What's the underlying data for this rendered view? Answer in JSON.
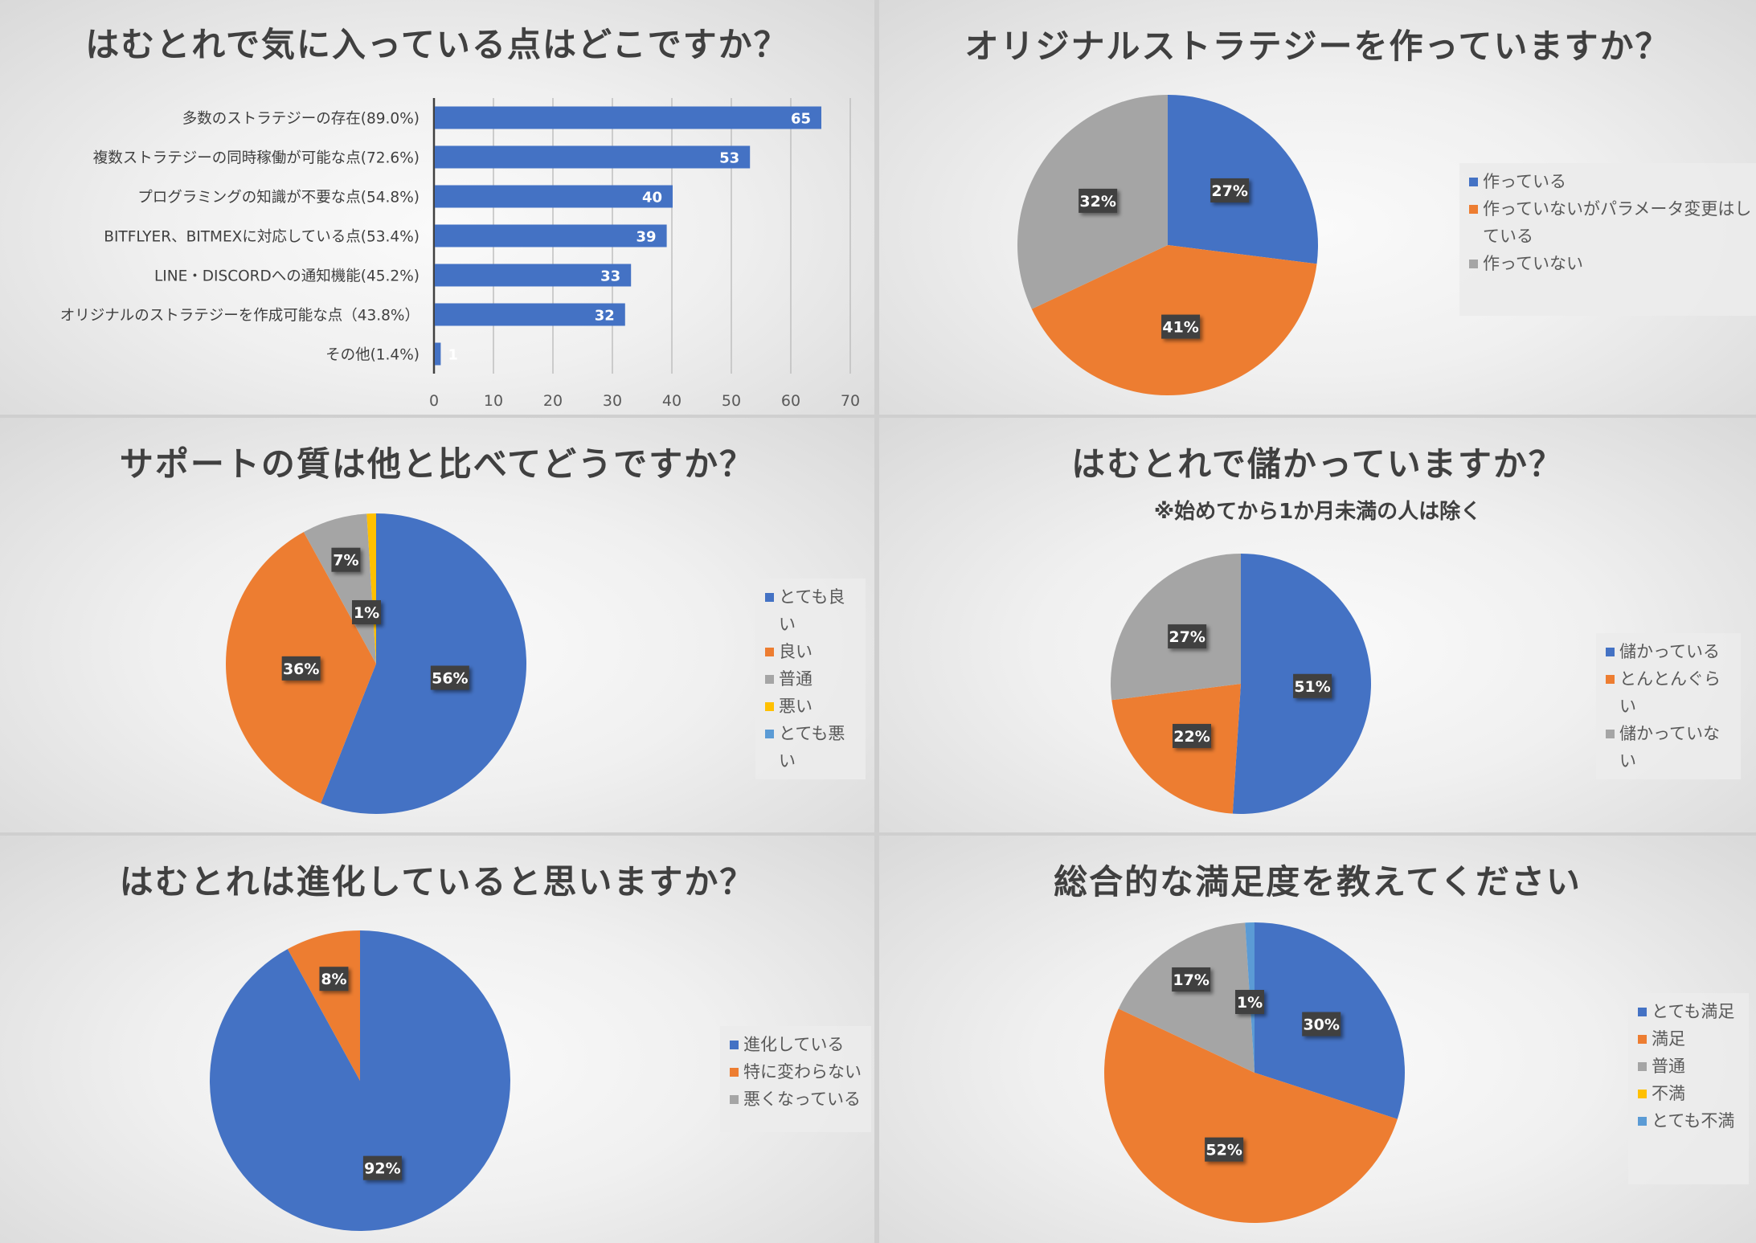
{
  "chart_data": [
    {
      "type": "bar",
      "orientation": "horizontal",
      "title": "はむとれで気に入っている点はどこですか？",
      "categories": [
        "多数のストラテジーの存在(89.0%)",
        "複数ストラテジーの同時稼働が可能な点(72.6%)",
        "プログラミングの知識が不要な点(54.8%)",
        "BITFLYER、BITMEXに対応している点(53.4%)",
        "LINE・DISCORDへの通知機能(45.2%)",
        "オリジナルのストラテジーを作成可能な点（43.8%）",
        "その他(1.4%)"
      ],
      "values": [
        65,
        53,
        40,
        39,
        33,
        32,
        1
      ],
      "data_labels": [
        "65",
        "53",
        "40",
        "39",
        "33",
        "32",
        "1"
      ],
      "xticks": [
        "0",
        "10",
        "20",
        "30",
        "40",
        "50",
        "60",
        "70"
      ],
      "xlim": [
        0,
        70
      ],
      "grid": true,
      "color": "#4472C4"
    },
    {
      "type": "pie",
      "title": "オリジナルストラテジーを作っていますか？",
      "labels": [
        "作っている",
        "作っていないがパラメータ変更はしている",
        "作っていない"
      ],
      "values": [
        27,
        41,
        32
      ],
      "data_labels": [
        "27%",
        "41%",
        "32%"
      ],
      "colors": [
        "#4472C4",
        "#ED7D31",
        "#A5A5A5"
      ],
      "legend": "right"
    },
    {
      "type": "pie",
      "title": "サポートの質は他と比べてどうですか？",
      "labels": [
        "とても良い",
        "良い",
        "普通",
        "悪い",
        "とても悪い"
      ],
      "values": [
        56,
        36,
        7,
        1,
        0
      ],
      "data_labels": [
        "56%",
        "36%",
        "7%",
        "1%",
        ""
      ],
      "colors": [
        "#4472C4",
        "#ED7D31",
        "#A5A5A5",
        "#FFC000",
        "#5B9BD5"
      ],
      "legend": "right"
    },
    {
      "type": "pie",
      "title": "はむとれで儲かっていますか？",
      "subtitle": "※始めてから1か月未満の人は除く",
      "labels": [
        "儲かっている",
        "とんとんぐらい",
        "儲かっていない"
      ],
      "values": [
        51,
        22,
        27
      ],
      "data_labels": [
        "51%",
        "22%",
        "27%"
      ],
      "colors": [
        "#4472C4",
        "#ED7D31",
        "#A5A5A5"
      ],
      "legend": "right"
    },
    {
      "type": "pie",
      "title": "はむとれは進化していると思いますか？",
      "labels": [
        "進化している",
        "特に変わらない",
        "悪くなっている"
      ],
      "values": [
        92,
        8,
        0
      ],
      "data_labels": [
        "92%",
        "8%",
        ""
      ],
      "colors": [
        "#4472C4",
        "#ED7D31",
        "#A5A5A5"
      ],
      "legend": "right"
    },
    {
      "type": "pie",
      "title": "総合的な満足度を教えてください",
      "labels": [
        "とても満足",
        "満足",
        "普通",
        "不満",
        "とても不満"
      ],
      "values": [
        30,
        52,
        17,
        0,
        1
      ],
      "data_labels": [
        "30%",
        "52%",
        "17%",
        "",
        "1%"
      ],
      "colors": [
        "#4472C4",
        "#ED7D31",
        "#A5A5A5",
        "#FFC000",
        "#5B9BD5"
      ],
      "legend": "right"
    }
  ]
}
